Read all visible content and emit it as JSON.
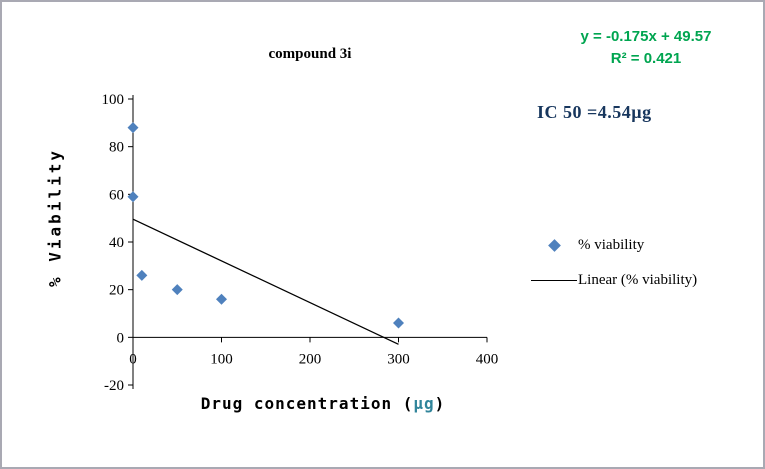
{
  "chart_data": {
    "type": "scatter",
    "title": "compound 3i",
    "xlabel": "Drug concentration (µg)",
    "ylabel": "% Viability",
    "xlabel_parts": {
      "main": "Drug concentration ",
      "open": "(",
      "unit": "µg",
      "close": ")"
    },
    "xlim": [
      0,
      400
    ],
    "ylim": [
      -20,
      100
    ],
    "xticks": [
      0,
      100,
      200,
      300,
      400
    ],
    "yticks": [
      100,
      80,
      60,
      40,
      20,
      0,
      -20
    ],
    "grid": false,
    "legend_position": "right",
    "series": [
      {
        "name": "% viability",
        "marker": "diamond",
        "color": "#4f81bd",
        "x": [
          0,
          0,
          10,
          50,
          100,
          300
        ],
        "y": [
          88,
          59,
          26,
          20,
          16,
          6
        ]
      }
    ],
    "trendline": {
      "label": "Linear (% viability)",
      "slope": -0.175,
      "intercept": 49.57,
      "x_start": 0,
      "x_end": 300,
      "color": "#000000"
    },
    "equation": "y = -0.175x + 49.57",
    "r_squared": "R² = 0.421",
    "annotation_ic50": "IC 50 =4.54µg"
  },
  "colors": {
    "equation_text": "#00a550",
    "ic50_text": "#17365d",
    "unit_text": "#31859b",
    "series_marker": "#4f81bd",
    "trendline": "#000000",
    "axis_line": "#000000",
    "frame_border": "#a9a9b3"
  }
}
